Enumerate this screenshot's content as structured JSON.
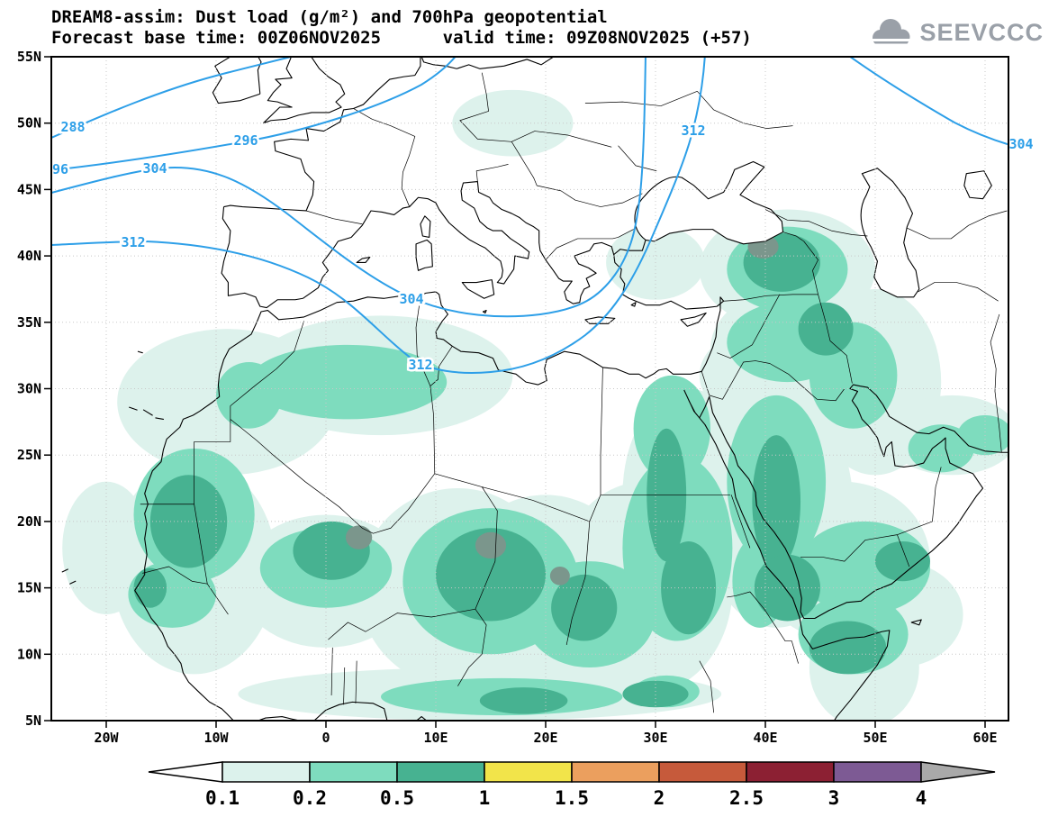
{
  "header": {
    "title_line1": "DREAM8-assim: Dust load (g/m²) and 700hPa geopotential",
    "title_line2": "Forecast base time: 00Z06NOV2025      valid time: 09Z08NOV2025 (+57)"
  },
  "logo": {
    "text": "SEEVCCC"
  },
  "axes": {
    "lat_labels": [
      "55N",
      "50N",
      "45N",
      "40N",
      "35N",
      "30N",
      "25N",
      "20N",
      "15N",
      "10N",
      "5N"
    ],
    "lon_labels": [
      "20W",
      "10W",
      "0",
      "10E",
      "20E",
      "30E",
      "40E",
      "50E",
      "60E"
    ]
  },
  "contours": {
    "field": "700hPa geopotential",
    "color": "#2d9fe8",
    "visible_values": [
      288,
      296,
      304,
      312
    ],
    "labels": [
      {
        "text": "288"
      },
      {
        "text": "96"
      },
      {
        "text": "296"
      },
      {
        "text": "304"
      },
      {
        "text": "312"
      },
      {
        "text": "304"
      },
      {
        "text": "312"
      },
      {
        "text": "312"
      },
      {
        "text": "304"
      }
    ]
  },
  "dust": {
    "field": "Dust load (g/m²)",
    "level_colors": {
      "l1": "#ddf2ec",
      "l2": "#7edcbe",
      "l3": "#47b291",
      "spot": "#7b968c"
    }
  },
  "colorbar": {
    "labels": [
      "0.1",
      "0.2",
      "0.5",
      "1",
      "1.5",
      "2",
      "2.5",
      "3",
      "4"
    ],
    "cell_colors": [
      "#dcf2ec",
      "#7edcbe",
      "#47b291",
      "#f2e44a",
      "#eb9f5e",
      "#c65a3b",
      "#8c2033",
      "#7d5a94"
    ],
    "left_arrow_color": "#ffffff",
    "right_arrow_color": "#a9a9a9",
    "outline_color": "#000000"
  }
}
